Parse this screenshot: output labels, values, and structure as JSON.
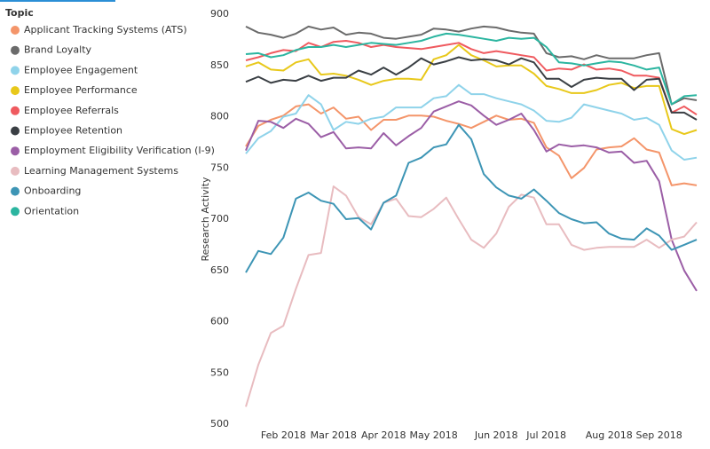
{
  "chart_data": {
    "type": "line",
    "legend_title": "Topic",
    "y_label": "Research Activity",
    "categories": [
      null,
      null,
      null,
      "Feb 2018",
      null,
      null,
      null,
      "Mar 2018",
      null,
      null,
      null,
      "Apr 2018",
      null,
      null,
      null,
      "May 2018",
      null,
      null,
      null,
      null,
      "Jun 2018",
      null,
      null,
      null,
      "Jul 2018",
      null,
      null,
      null,
      null,
      "Aug 2018",
      null,
      null,
      null,
      "Sep 2018",
      null,
      null,
      null
    ],
    "ylim": [
      500,
      900
    ],
    "yticks": [
      500,
      550,
      600,
      650,
      700,
      750,
      800,
      850,
      900
    ],
    "grid": false,
    "series": [
      {
        "name": "Applicant Tracking Systems (ATS)",
        "color": "#f4956a",
        "values": [
          771,
          791,
          797,
          801,
          810,
          812,
          803,
          809,
          798,
          800,
          787,
          797,
          797,
          801,
          801,
          800,
          796,
          793,
          789,
          795,
          801,
          797,
          798,
          794,
          770,
          762,
          740,
          750,
          768,
          770,
          771,
          779,
          768,
          765,
          733,
          735,
          733
        ]
      },
      {
        "name": "Brand Loyalty",
        "color": "#6b6b6b",
        "values": [
          888,
          882,
          880,
          877,
          881,
          888,
          885,
          887,
          880,
          882,
          881,
          877,
          876,
          878,
          880,
          886,
          885,
          883,
          886,
          888,
          887,
          884,
          882,
          881,
          862,
          858,
          859,
          856,
          860,
          857,
          857,
          857,
          860,
          862,
          812,
          818,
          816
        ]
      },
      {
        "name": "Employee Engagement",
        "color": "#8fd3ea",
        "values": [
          764,
          779,
          786,
          800,
          803,
          821,
          812,
          787,
          795,
          793,
          798,
          800,
          809,
          809,
          809,
          818,
          820,
          831,
          822,
          822,
          818,
          815,
          812,
          806,
          796,
          795,
          799,
          812,
          809,
          806,
          803,
          797,
          799,
          792,
          767,
          758,
          760
        ]
      },
      {
        "name": "Employee Performance",
        "color": "#e8c81a",
        "values": [
          849,
          853,
          846,
          845,
          853,
          856,
          841,
          842,
          840,
          836,
          831,
          835,
          837,
          837,
          836,
          856,
          860,
          870,
          860,
          855,
          849,
          850,
          850,
          842,
          830,
          827,
          823,
          823,
          826,
          831,
          833,
          828,
          830,
          830,
          788,
          783,
          787
        ]
      },
      {
        "name": "Employee Referrals",
        "color": "#ef5a5f",
        "values": [
          855,
          858,
          862,
          865,
          864,
          872,
          868,
          873,
          874,
          872,
          868,
          870,
          868,
          867,
          866,
          868,
          870,
          872,
          866,
          862,
          864,
          862,
          860,
          858,
          845,
          847,
          846,
          851,
          846,
          847,
          845,
          840,
          840,
          838,
          804,
          810,
          802
        ]
      },
      {
        "name": "Employee Retention",
        "color": "#3a3f44",
        "values": [
          834,
          839,
          833,
          836,
          835,
          840,
          835,
          838,
          838,
          845,
          841,
          848,
          841,
          848,
          857,
          851,
          854,
          858,
          855,
          856,
          855,
          851,
          857,
          853,
          837,
          837,
          829,
          836,
          838,
          837,
          837,
          826,
          836,
          837,
          804,
          804,
          797
        ]
      },
      {
        "name": "Employment Eligibility Verification (I-9)",
        "color": "#9b5ea6",
        "values": [
          767,
          796,
          795,
          789,
          798,
          793,
          780,
          785,
          769,
          770,
          769,
          784,
          772,
          781,
          789,
          805,
          810,
          815,
          811,
          801,
          792,
          797,
          803,
          787,
          766,
          773,
          771,
          772,
          770,
          765,
          766,
          755,
          757,
          737,
          680,
          650,
          630
        ]
      },
      {
        "name": "Learning Management Systems",
        "color": "#e8bcc0",
        "values": [
          517,
          558,
          589,
          596,
          632,
          665,
          667,
          732,
          723,
          702,
          695,
          716,
          720,
          703,
          702,
          710,
          721,
          700,
          680,
          672,
          686,
          712,
          724,
          721,
          695,
          695,
          675,
          670,
          672,
          673,
          673,
          673,
          680,
          672,
          680,
          683,
          697
        ]
      },
      {
        "name": "Onboarding",
        "color": "#3d95b5",
        "values": [
          648,
          669,
          666,
          682,
          720,
          726,
          718,
          715,
          700,
          701,
          690,
          716,
          723,
          755,
          760,
          770,
          773,
          792,
          778,
          744,
          731,
          723,
          720,
          729,
          718,
          706,
          700,
          696,
          697,
          686,
          681,
          680,
          691,
          684,
          670,
          675,
          680
        ]
      },
      {
        "name": "Orientation",
        "color": "#2bb5a0",
        "values": [
          861,
          862,
          858,
          860,
          865,
          868,
          868,
          870,
          868,
          870,
          872,
          871,
          870,
          872,
          874,
          878,
          881,
          880,
          878,
          876,
          874,
          877,
          876,
          877,
          868,
          853,
          852,
          850,
          852,
          854,
          853,
          850,
          846,
          848,
          812,
          820,
          821
        ]
      }
    ]
  }
}
